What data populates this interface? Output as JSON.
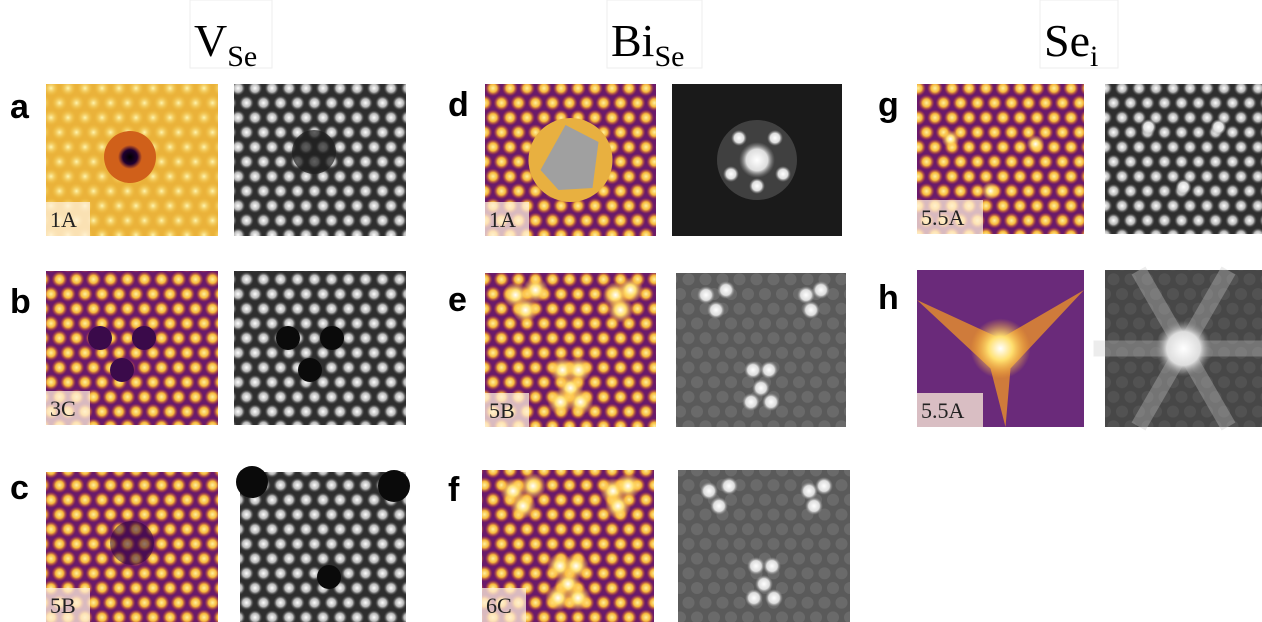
{
  "columns": [
    {
      "symbol": "V",
      "subscript": "Se"
    },
    {
      "symbol": "Bi",
      "subscript": "Se"
    },
    {
      "symbol": "Se",
      "subscript": "i"
    }
  ],
  "panels": [
    {
      "letter": "a",
      "label": "1A"
    },
    {
      "letter": "b",
      "label": "3C"
    },
    {
      "letter": "c",
      "label": "5B"
    },
    {
      "letter": "d",
      "label": "1A"
    },
    {
      "letter": "e",
      "label": "5B"
    },
    {
      "letter": "f",
      "label": "6C"
    },
    {
      "letter": "g",
      "label": "5.5A"
    },
    {
      "letter": "h",
      "label": "5.5A"
    }
  ]
}
